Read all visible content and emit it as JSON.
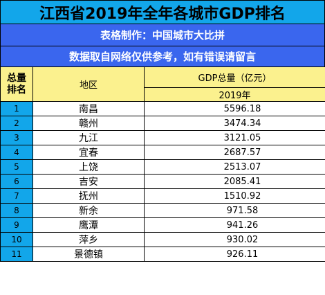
{
  "header": {
    "title": "江西省2019年全年各城市GDP排名",
    "maker": "表格制作：中国城市大比拼",
    "note": "数据取自网络仅供参考，如有错误请留言"
  },
  "columns": {
    "rank_line1": "总量",
    "rank_line2": "排名",
    "region": "地区",
    "gdp": "GDP总量（亿元）",
    "year": "2019年"
  },
  "rows": [
    {
      "rank": "1",
      "city": "南昌",
      "gdp": "5596.18"
    },
    {
      "rank": "2",
      "city": "赣州",
      "gdp": "3474.34"
    },
    {
      "rank": "3",
      "city": "九江",
      "gdp": "3121.05"
    },
    {
      "rank": "4",
      "city": "宜春",
      "gdp": "2687.57"
    },
    {
      "rank": "5",
      "city": "上饶",
      "gdp": "2513.07"
    },
    {
      "rank": "6",
      "city": "吉安",
      "gdp": "2085.41"
    },
    {
      "rank": "7",
      "city": "抚州",
      "gdp": "1510.92"
    },
    {
      "rank": "8",
      "city": "新余",
      "gdp": "971.58"
    },
    {
      "rank": "9",
      "city": "鹰潭",
      "gdp": "941.26"
    },
    {
      "rank": "10",
      "city": "萍乡",
      "gdp": "930.02"
    },
    {
      "rank": "11",
      "city": "景德镇",
      "gdp": "926.11"
    }
  ],
  "colors": {
    "title_bg": "#12a6ea",
    "band_bg": "#3a66ee",
    "header_bg": "#fbf18e",
    "rank_bg": "#12a6ea"
  }
}
